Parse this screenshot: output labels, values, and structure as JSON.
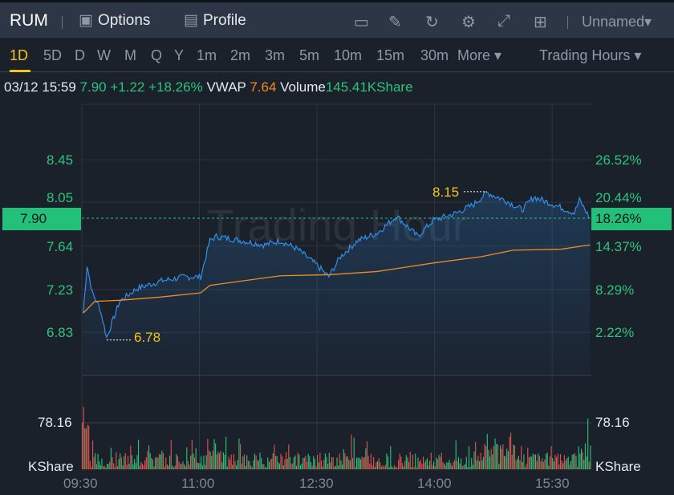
{
  "header": {
    "symbol": "RUM",
    "options": "Options",
    "profile": "Profile",
    "layout_name": "Unnamed▾"
  },
  "periods": [
    "1D",
    "5D",
    "D",
    "W",
    "M",
    "Q",
    "Y",
    "1m",
    "2m",
    "3m",
    "5m",
    "10m",
    "15m",
    "30m",
    "More ▾"
  ],
  "active_period": "1D",
  "session": "Trading Hours ▾",
  "info": {
    "datetime": "03/12 15:59",
    "price": "7.90",
    "change": "+1.22",
    "change_pct": "+18.26%",
    "vwap_label": "VWAP",
    "vwap": "7.64",
    "volume_label": "Volume",
    "volume": "145.41KShare"
  },
  "watermark": "Trading Hour",
  "colors": {
    "up": "#2dc37c",
    "down": "#e5534b",
    "price_line": "#2f8fe8",
    "vwap": "#f08a24",
    "accent": "#f5c518"
  },
  "chart_data": {
    "type": "line",
    "x_ticks": [
      "09:30",
      "11:00",
      "12:30",
      "14:00",
      "15:30"
    ],
    "y_ticks_left": [
      "8.45",
      "8.05",
      "7.64",
      "7.23",
      "6.83"
    ],
    "y_ticks_right": [
      "26.52%",
      "20.44%",
      "14.37%",
      "8.29%",
      "2.22%"
    ],
    "current_price": "7.90",
    "current_pct": "18.26%",
    "high_label": "8.15",
    "low_label": "6.78",
    "ylim": [
      6.7,
      8.62
    ],
    "xlim_minutes": [
      0,
      390
    ],
    "series": [
      {
        "name": "Price",
        "points": [
          [
            1,
            7.01
          ],
          [
            4,
            7.46
          ],
          [
            8,
            7.2
          ],
          [
            14,
            7.05
          ],
          [
            19,
            6.78
          ],
          [
            29,
            7.12
          ],
          [
            42,
            7.24
          ],
          [
            60,
            7.31
          ],
          [
            79,
            7.35
          ],
          [
            91,
            7.35
          ],
          [
            98,
            7.69
          ],
          [
            103,
            7.73
          ],
          [
            122,
            7.69
          ],
          [
            140,
            7.65
          ],
          [
            152,
            7.69
          ],
          [
            165,
            7.61
          ],
          [
            180,
            7.46
          ],
          [
            189,
            7.35
          ],
          [
            198,
            7.54
          ],
          [
            211,
            7.69
          ],
          [
            226,
            7.76
          ],
          [
            241,
            7.92
          ],
          [
            257,
            7.73
          ],
          [
            269,
            7.88
          ],
          [
            287,
            7.95
          ],
          [
            300,
            8.03
          ],
          [
            310,
            8.14
          ],
          [
            324,
            8.07
          ],
          [
            337,
            7.98
          ],
          [
            346,
            8.1
          ],
          [
            361,
            8.03
          ],
          [
            377,
            7.95
          ],
          [
            381,
            8.07
          ],
          [
            389,
            7.9
          ]
        ]
      },
      {
        "name": "VWAP",
        "points": [
          [
            1,
            7.01
          ],
          [
            10,
            7.12
          ],
          [
            29,
            7.13
          ],
          [
            60,
            7.16
          ],
          [
            91,
            7.2
          ],
          [
            98,
            7.27
          ],
          [
            122,
            7.31
          ],
          [
            152,
            7.36
          ],
          [
            189,
            7.37
          ],
          [
            226,
            7.4
          ],
          [
            269,
            7.48
          ],
          [
            306,
            7.54
          ],
          [
            330,
            7.6
          ],
          [
            367,
            7.61
          ],
          [
            389,
            7.65
          ]
        ]
      }
    ],
    "volume": {
      "label": "KShare",
      "tick": "78.16",
      "tick_value": 78.16,
      "max": 130
    }
  }
}
